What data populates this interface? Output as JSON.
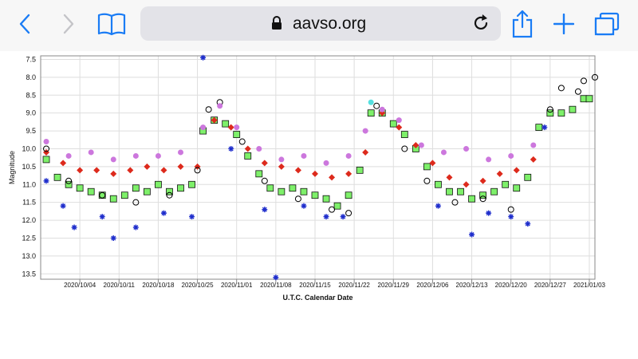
{
  "browser": {
    "url": "aavso.org",
    "icons": [
      "back-icon",
      "forward-icon",
      "bookmarks-icon",
      "lock-icon",
      "reload-icon",
      "share-icon",
      "new-tab-icon",
      "tabs-icon"
    ],
    "accent": "#1a7cf5"
  },
  "chart_data": {
    "type": "scatter",
    "title": "",
    "xlabel": "U.T.C. Calendar Date",
    "ylabel": "Magnitude",
    "y_inverted": true,
    "ylim": [
      7.4,
      13.65
    ],
    "xlim": [
      "2020-09-27",
      "2021-01-04"
    ],
    "yticks": [
      "7.5",
      "8.0",
      "8.5",
      "9.0",
      "9.5",
      "10.0",
      "10.5",
      "11.0",
      "11.5",
      "12.0",
      "12.5",
      "13.0",
      "13.5"
    ],
    "xticks": [
      "2020/10/04",
      "2020/10/11",
      "2020/10/18",
      "2020/10/25",
      "2020/11/01",
      "2020/11/08",
      "2020/11/15",
      "2020/11/22",
      "2020/11/29",
      "2020/12/06",
      "2020/12/13",
      "2020/12/20",
      "2020/12/27",
      "2021/01/03"
    ],
    "grid": true,
    "legend": "none",
    "series": [
      {
        "marker": "square",
        "color": "#7ef06a",
        "points": [
          [
            "2020-09-28",
            10.3
          ],
          [
            "2020-09-30",
            10.8
          ],
          [
            "2020-10-02",
            11.0
          ],
          [
            "2020-10-04",
            11.1
          ],
          [
            "2020-10-06",
            11.2
          ],
          [
            "2020-10-08",
            11.3
          ],
          [
            "2020-10-10",
            11.4
          ],
          [
            "2020-10-12",
            11.3
          ],
          [
            "2020-10-14",
            11.1
          ],
          [
            "2020-10-16",
            11.2
          ],
          [
            "2020-10-18",
            11.0
          ],
          [
            "2020-10-20",
            11.2
          ],
          [
            "2020-10-22",
            11.1
          ],
          [
            "2020-10-24",
            11.0
          ],
          [
            "2020-10-26",
            9.5
          ],
          [
            "2020-10-28",
            9.2
          ],
          [
            "2020-10-30",
            9.3
          ],
          [
            "2020-11-01",
            9.6
          ],
          [
            "2020-11-03",
            10.2
          ],
          [
            "2020-11-05",
            10.7
          ],
          [
            "2020-11-07",
            11.1
          ],
          [
            "2020-11-09",
            11.2
          ],
          [
            "2020-11-11",
            11.1
          ],
          [
            "2020-11-13",
            11.2
          ],
          [
            "2020-11-15",
            11.3
          ],
          [
            "2020-11-17",
            11.4
          ],
          [
            "2020-11-19",
            11.6
          ],
          [
            "2020-11-21",
            11.3
          ],
          [
            "2020-11-23",
            10.6
          ],
          [
            "2020-11-25",
            9.0
          ],
          [
            "2020-11-27",
            9.0
          ],
          [
            "2020-11-29",
            9.3
          ],
          [
            "2020-12-01",
            9.6
          ],
          [
            "2020-12-03",
            10.0
          ],
          [
            "2020-12-05",
            10.5
          ],
          [
            "2020-12-07",
            11.0
          ],
          [
            "2020-12-09",
            11.2
          ],
          [
            "2020-12-11",
            11.2
          ],
          [
            "2020-12-13",
            11.4
          ],
          [
            "2020-12-15",
            11.3
          ],
          [
            "2020-12-17",
            11.2
          ],
          [
            "2020-12-19",
            11.0
          ],
          [
            "2020-12-21",
            11.1
          ],
          [
            "2020-12-23",
            10.8
          ],
          [
            "2020-12-25",
            9.4
          ],
          [
            "2020-12-27",
            9.0
          ],
          [
            "2020-12-29",
            9.0
          ],
          [
            "2020-12-31",
            8.9
          ],
          [
            "2021-01-02",
            8.6
          ],
          [
            "2021-01-03",
            8.6
          ]
        ]
      },
      {
        "marker": "diamond",
        "color": "#dd2a1c",
        "points": [
          [
            "2020-09-28",
            10.1
          ],
          [
            "2020-10-01",
            10.4
          ],
          [
            "2020-10-04",
            10.6
          ],
          [
            "2020-10-07",
            10.6
          ],
          [
            "2020-10-10",
            10.7
          ],
          [
            "2020-10-13",
            10.6
          ],
          [
            "2020-10-16",
            10.5
          ],
          [
            "2020-10-19",
            10.6
          ],
          [
            "2020-10-22",
            10.5
          ],
          [
            "2020-10-25",
            10.5
          ],
          [
            "2020-10-28",
            9.2
          ],
          [
            "2020-10-31",
            9.4
          ],
          [
            "2020-11-03",
            10.0
          ],
          [
            "2020-11-06",
            10.4
          ],
          [
            "2020-11-09",
            10.5
          ],
          [
            "2020-11-12",
            10.6
          ],
          [
            "2020-11-15",
            10.7
          ],
          [
            "2020-11-18",
            10.8
          ],
          [
            "2020-11-21",
            10.7
          ],
          [
            "2020-11-24",
            10.1
          ],
          [
            "2020-11-27",
            9.0
          ],
          [
            "2020-11-30",
            9.4
          ],
          [
            "2020-12-03",
            9.9
          ],
          [
            "2020-12-06",
            10.4
          ],
          [
            "2020-12-09",
            10.8
          ],
          [
            "2020-12-12",
            11.0
          ],
          [
            "2020-12-15",
            10.9
          ],
          [
            "2020-12-18",
            10.7
          ],
          [
            "2020-12-21",
            10.6
          ],
          [
            "2020-12-24",
            10.3
          ]
        ]
      },
      {
        "marker": "circle-open",
        "color": "#000000",
        "points": [
          [
            "2020-09-28",
            10.0
          ],
          [
            "2020-10-02",
            10.9
          ],
          [
            "2020-10-08",
            11.3
          ],
          [
            "2020-10-14",
            11.5
          ],
          [
            "2020-10-20",
            11.3
          ],
          [
            "2020-10-25",
            10.6
          ],
          [
            "2020-10-27",
            8.9
          ],
          [
            "2020-10-29",
            8.7
          ],
          [
            "2020-11-02",
            9.8
          ],
          [
            "2020-11-06",
            10.9
          ],
          [
            "2020-11-12",
            11.4
          ],
          [
            "2020-11-18",
            11.7
          ],
          [
            "2020-11-21",
            11.8
          ],
          [
            "2020-11-26",
            8.8
          ],
          [
            "2020-12-01",
            10.0
          ],
          [
            "2020-12-05",
            10.9
          ],
          [
            "2020-12-10",
            11.5
          ],
          [
            "2020-12-15",
            11.4
          ],
          [
            "2020-12-20",
            11.7
          ],
          [
            "2020-12-27",
            8.9
          ],
          [
            "2020-12-29",
            8.3
          ],
          [
            "2021-01-01",
            8.4
          ],
          [
            "2021-01-02",
            8.1
          ],
          [
            "2021-01-04",
            8.0
          ]
        ]
      },
      {
        "marker": "circle",
        "color": "#cc77dd",
        "points": [
          [
            "2020-09-28",
            9.8
          ],
          [
            "2020-10-02",
            10.2
          ],
          [
            "2020-10-06",
            10.1
          ],
          [
            "2020-10-10",
            10.3
          ],
          [
            "2020-10-14",
            10.2
          ],
          [
            "2020-10-18",
            10.2
          ],
          [
            "2020-10-22",
            10.1
          ],
          [
            "2020-10-26",
            9.4
          ],
          [
            "2020-10-29",
            8.8
          ],
          [
            "2020-11-01",
            9.4
          ],
          [
            "2020-11-05",
            10.0
          ],
          [
            "2020-11-09",
            10.3
          ],
          [
            "2020-11-13",
            10.2
          ],
          [
            "2020-11-17",
            10.4
          ],
          [
            "2020-11-21",
            10.2
          ],
          [
            "2020-11-24",
            9.5
          ],
          [
            "2020-11-27",
            8.9
          ],
          [
            "2020-11-30",
            9.2
          ],
          [
            "2020-12-04",
            9.9
          ],
          [
            "2020-12-08",
            10.1
          ],
          [
            "2020-12-12",
            10.0
          ],
          [
            "2020-12-16",
            10.3
          ],
          [
            "2020-12-20",
            10.2
          ],
          [
            "2020-12-24",
            9.9
          ]
        ]
      },
      {
        "marker": "asterisk",
        "color": "#1f2ecc",
        "points": [
          [
            "2020-09-28",
            10.9
          ],
          [
            "2020-10-01",
            11.6
          ],
          [
            "2020-10-03",
            12.2
          ],
          [
            "2020-10-08",
            11.9
          ],
          [
            "2020-10-10",
            12.5
          ],
          [
            "2020-10-14",
            12.2
          ],
          [
            "2020-10-19",
            11.8
          ],
          [
            "2020-10-24",
            11.9
          ],
          [
            "2020-10-26",
            7.45
          ],
          [
            "2020-10-31",
            10.0
          ],
          [
            "2020-11-06",
            11.7
          ],
          [
            "2020-11-08",
            13.6
          ],
          [
            "2020-11-13",
            11.6
          ],
          [
            "2020-11-17",
            11.9
          ],
          [
            "2020-11-20",
            11.9
          ],
          [
            "2020-12-07",
            11.6
          ],
          [
            "2020-12-13",
            12.4
          ],
          [
            "2020-12-16",
            11.8
          ],
          [
            "2020-12-20",
            11.9
          ],
          [
            "2020-12-23",
            12.1
          ],
          [
            "2020-12-26",
            9.4
          ]
        ]
      },
      {
        "marker": "circle",
        "color": "#55e0e0",
        "points": [
          [
            "2020-11-25",
            8.7
          ]
        ]
      }
    ]
  }
}
